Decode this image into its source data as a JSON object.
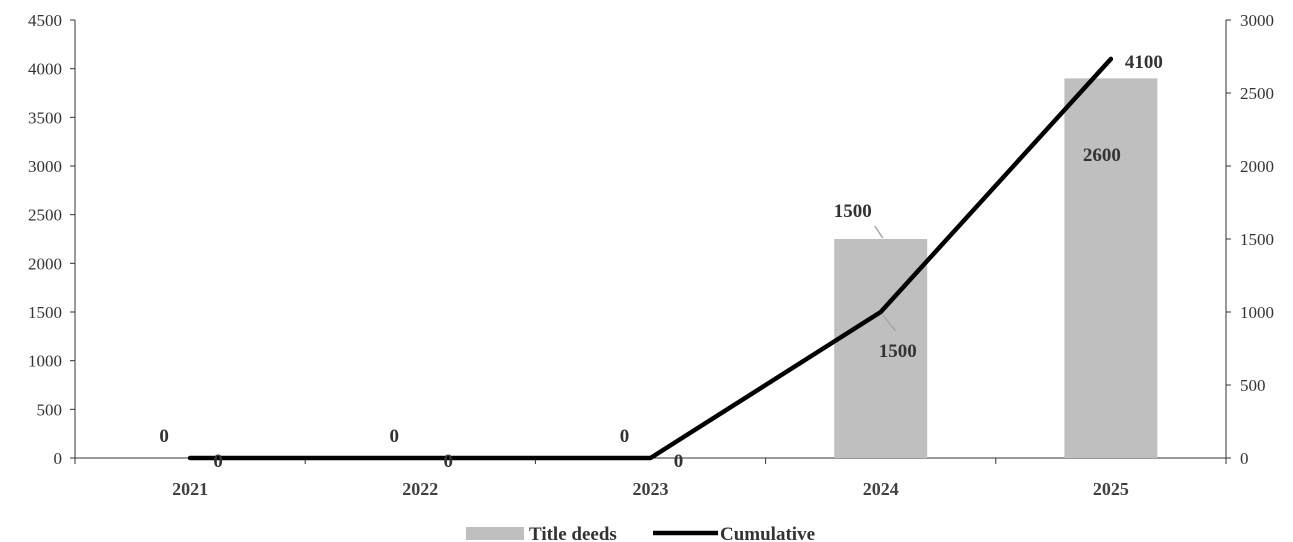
{
  "chart_data": {
    "type": "bar+line",
    "categories": [
      "2021",
      "2022",
      "2023",
      "2024",
      "2025"
    ],
    "series": [
      {
        "name": "Title deeds",
        "type": "bar",
        "axis": "right",
        "values": [
          0,
          0,
          0,
          1500,
          2600
        ],
        "data_labels": [
          "0",
          "0",
          "0",
          "1500",
          "2600"
        ],
        "color": "#bfbfbf"
      },
      {
        "name": "Cumulative",
        "type": "line",
        "axis": "left",
        "values": [
          0,
          0,
          0,
          1500,
          4100
        ],
        "data_labels": [
          "0",
          "0",
          "0",
          "1500",
          "4100"
        ],
        "color": "#000000"
      }
    ],
    "y_left": {
      "ylim": [
        0,
        4500
      ],
      "ticks": [
        "0",
        "500",
        "1000",
        "1500",
        "2000",
        "2500",
        "3000",
        "3500",
        "4000",
        "4500"
      ]
    },
    "y_right": {
      "ylim": [
        0,
        3000
      ],
      "ticks": [
        "0",
        "500",
        "1000",
        "1500",
        "2000",
        "2500",
        "3000"
      ]
    },
    "title": "",
    "xlabel": "",
    "ylabel": "",
    "grid": false,
    "legend": {
      "position": "bottom",
      "entries": [
        "Title deeds",
        "Cumulative"
      ]
    }
  }
}
